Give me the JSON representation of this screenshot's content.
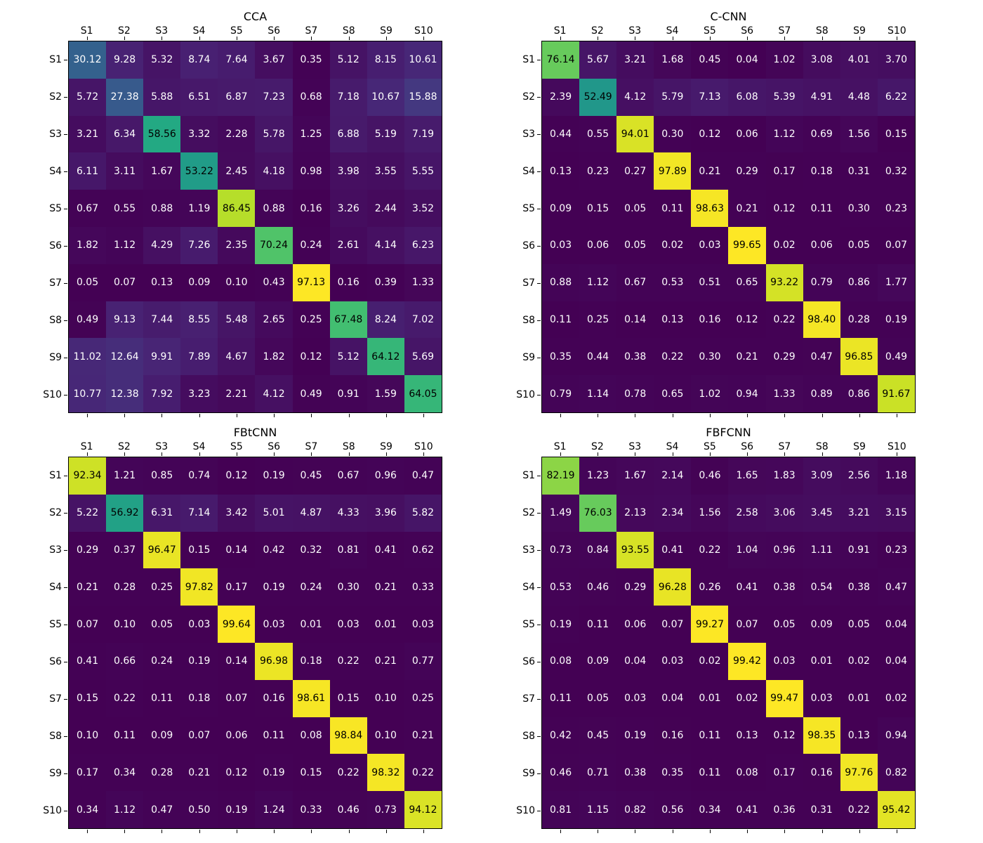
{
  "figure": {
    "background": "#ffffff",
    "text_color": "#000000",
    "annotation_color_low": "#ffffff",
    "annotation_color_high": "#000000"
  },
  "chart_data": [
    {
      "type": "heatmap",
      "title": "CCA",
      "colormap": "viridis",
      "x_axis_position": "top",
      "grid": false,
      "legend": "none",
      "x_labels": [
        "S1",
        "S2",
        "S3",
        "S4",
        "S5",
        "S6",
        "S7",
        "S8",
        "S9",
        "S10"
      ],
      "y_labels": [
        "S1",
        "S2",
        "S3",
        "S4",
        "S5",
        "S6",
        "S7",
        "S8",
        "S9",
        "S10"
      ],
      "values": [
        [
          30.12,
          9.28,
          5.32,
          8.74,
          7.64,
          3.67,
          0.35,
          5.12,
          8.15,
          10.61
        ],
        [
          5.72,
          27.38,
          5.88,
          6.51,
          6.87,
          7.23,
          0.68,
          7.18,
          10.67,
          15.88
        ],
        [
          3.21,
          6.34,
          58.56,
          3.32,
          2.28,
          5.78,
          1.25,
          6.88,
          5.19,
          7.19
        ],
        [
          6.11,
          3.11,
          1.67,
          53.22,
          2.45,
          4.18,
          0.98,
          3.98,
          3.55,
          5.55
        ],
        [
          0.67,
          0.55,
          0.88,
          1.19,
          86.45,
          0.88,
          0.16,
          3.26,
          2.44,
          3.52
        ],
        [
          1.82,
          1.12,
          4.29,
          7.26,
          2.35,
          70.24,
          0.24,
          2.61,
          4.14,
          6.23
        ],
        [
          0.05,
          0.07,
          0.13,
          0.09,
          0.1,
          0.43,
          97.13,
          0.16,
          0.39,
          1.33
        ],
        [
          0.49,
          9.13,
          7.44,
          8.55,
          5.48,
          2.65,
          0.25,
          67.48,
          8.24,
          7.02
        ],
        [
          11.02,
          12.64,
          9.91,
          7.89,
          4.67,
          1.82,
          0.12,
          5.12,
          64.12,
          5.69
        ],
        [
          10.77,
          12.38,
          7.92,
          3.23,
          2.21,
          4.12,
          0.49,
          0.91,
          1.59,
          64.05
        ]
      ]
    },
    {
      "type": "heatmap",
      "title": "C-CNN",
      "colormap": "viridis",
      "x_axis_position": "top",
      "grid": false,
      "legend": "none",
      "x_labels": [
        "S1",
        "S2",
        "S3",
        "S4",
        "S5",
        "S6",
        "S7",
        "S8",
        "S9",
        "S10"
      ],
      "y_labels": [
        "S1",
        "S2",
        "S3",
        "S4",
        "S5",
        "S6",
        "S7",
        "S8",
        "S9",
        "S10"
      ],
      "values": [
        [
          76.14,
          5.67,
          3.21,
          1.68,
          0.45,
          0.04,
          1.02,
          3.08,
          4.01,
          3.7
        ],
        [
          2.39,
          52.49,
          4.12,
          5.79,
          7.13,
          6.08,
          5.39,
          4.91,
          4.48,
          6.22
        ],
        [
          0.44,
          0.55,
          94.01,
          0.3,
          0.12,
          0.06,
          1.12,
          0.69,
          1.56,
          0.15
        ],
        [
          0.13,
          0.23,
          0.27,
          97.89,
          0.21,
          0.29,
          0.17,
          0.18,
          0.31,
          0.32
        ],
        [
          0.09,
          0.15,
          0.05,
          0.11,
          98.63,
          0.21,
          0.12,
          0.11,
          0.3,
          0.23
        ],
        [
          0.03,
          0.06,
          0.05,
          0.02,
          0.03,
          99.65,
          0.02,
          0.06,
          0.05,
          0.07
        ],
        [
          0.88,
          1.12,
          0.67,
          0.53,
          0.51,
          0.65,
          93.22,
          0.79,
          0.86,
          1.77
        ],
        [
          0.11,
          0.25,
          0.14,
          0.13,
          0.16,
          0.12,
          0.22,
          98.4,
          0.28,
          0.19
        ],
        [
          0.35,
          0.44,
          0.38,
          0.22,
          0.3,
          0.21,
          0.29,
          0.47,
          96.85,
          0.49
        ],
        [
          0.79,
          1.14,
          0.78,
          0.65,
          1.02,
          0.94,
          1.33,
          0.89,
          0.86,
          91.67
        ]
      ]
    },
    {
      "type": "heatmap",
      "title": "FBtCNN",
      "colormap": "viridis",
      "x_axis_position": "top",
      "grid": false,
      "legend": "none",
      "x_labels": [
        "S1",
        "S2",
        "S3",
        "S4",
        "S5",
        "S6",
        "S7",
        "S8",
        "S9",
        "S10"
      ],
      "y_labels": [
        "S1",
        "S2",
        "S3",
        "S4",
        "S5",
        "S6",
        "S7",
        "S8",
        "S9",
        "S10"
      ],
      "values": [
        [
          92.34,
          1.21,
          0.85,
          0.74,
          0.12,
          0.19,
          0.45,
          0.67,
          0.96,
          0.47
        ],
        [
          5.22,
          56.92,
          6.31,
          7.14,
          3.42,
          5.01,
          4.87,
          4.33,
          3.96,
          5.82
        ],
        [
          0.29,
          0.37,
          96.47,
          0.15,
          0.14,
          0.42,
          0.32,
          0.81,
          0.41,
          0.62
        ],
        [
          0.21,
          0.28,
          0.25,
          97.82,
          0.17,
          0.19,
          0.24,
          0.3,
          0.21,
          0.33
        ],
        [
          0.07,
          0.1,
          0.05,
          0.03,
          99.64,
          0.03,
          0.01,
          0.03,
          0.01,
          0.03
        ],
        [
          0.41,
          0.66,
          0.24,
          0.19,
          0.14,
          96.98,
          0.18,
          0.22,
          0.21,
          0.77
        ],
        [
          0.15,
          0.22,
          0.11,
          0.18,
          0.07,
          0.16,
          98.61,
          0.15,
          0.1,
          0.25
        ],
        [
          0.1,
          0.11,
          0.09,
          0.07,
          0.06,
          0.11,
          0.08,
          98.84,
          0.1,
          0.21
        ],
        [
          0.17,
          0.34,
          0.28,
          0.21,
          0.12,
          0.19,
          0.15,
          0.22,
          98.32,
          0.22
        ],
        [
          0.34,
          1.12,
          0.47,
          0.5,
          0.19,
          1.24,
          0.33,
          0.46,
          0.73,
          94.12
        ]
      ]
    },
    {
      "type": "heatmap",
      "title": "FBFCNN",
      "colormap": "viridis",
      "x_axis_position": "top",
      "grid": false,
      "legend": "none",
      "x_labels": [
        "S1",
        "S2",
        "S3",
        "S4",
        "S5",
        "S6",
        "S7",
        "S8",
        "S9",
        "S10"
      ],
      "y_labels": [
        "S1",
        "S2",
        "S3",
        "S4",
        "S5",
        "S6",
        "S7",
        "S8",
        "S9",
        "S10"
      ],
      "values": [
        [
          82.19,
          1.23,
          1.67,
          2.14,
          0.46,
          1.65,
          1.83,
          3.09,
          2.56,
          1.18
        ],
        [
          1.49,
          76.03,
          2.13,
          2.34,
          1.56,
          2.58,
          3.06,
          3.45,
          3.21,
          3.15
        ],
        [
          0.73,
          0.84,
          93.55,
          0.41,
          0.22,
          1.04,
          0.96,
          1.11,
          0.91,
          0.23
        ],
        [
          0.53,
          0.46,
          0.29,
          96.28,
          0.26,
          0.41,
          0.38,
          0.54,
          0.38,
          0.47
        ],
        [
          0.19,
          0.11,
          0.06,
          0.07,
          99.27,
          0.07,
          0.05,
          0.09,
          0.05,
          0.04
        ],
        [
          0.08,
          0.09,
          0.04,
          0.03,
          0.02,
          99.42,
          0.03,
          0.01,
          0.02,
          0.04
        ],
        [
          0.11,
          0.05,
          0.03,
          0.04,
          0.01,
          0.02,
          99.47,
          0.03,
          0.01,
          0.02
        ],
        [
          0.42,
          0.45,
          0.19,
          0.16,
          0.11,
          0.13,
          0.12,
          98.35,
          0.13,
          0.94
        ],
        [
          0.46,
          0.71,
          0.38,
          0.35,
          0.11,
          0.08,
          0.17,
          0.16,
          97.76,
          0.82
        ],
        [
          0.81,
          1.15,
          0.82,
          0.56,
          0.34,
          0.41,
          0.36,
          0.31,
          0.22,
          95.42
        ]
      ]
    }
  ]
}
